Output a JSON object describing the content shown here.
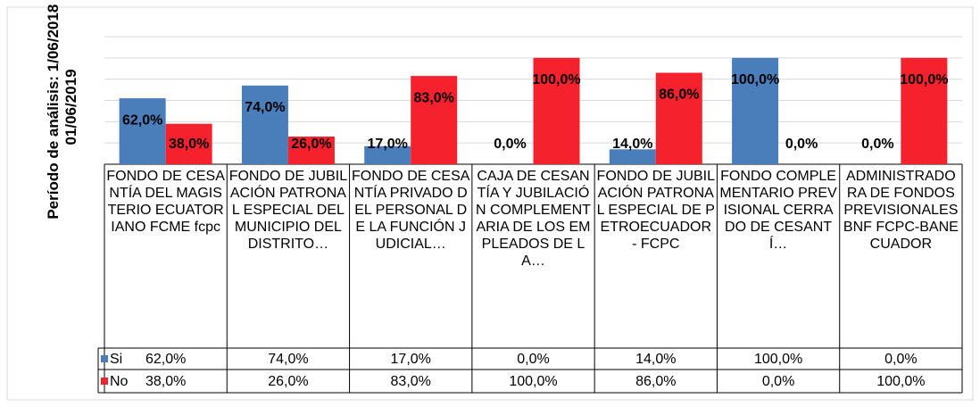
{
  "chart_data": {
    "type": "bar",
    "y_axis_label": "Período de análisis: 1/06/2018 - 01/06/2019",
    "categories": [
      "FONDO DE CESANTÍA DEL MAGISTERIO ECUATORIANO FCME fcpc",
      "FONDO DE JUBILACIÓN PATRONAL ESPECIAL DEL MUNICIPIO DEL DISTRITO…",
      "FONDO DE CESANTÍA PRIVADO DEL PERSONAL DE LA FUNCIÓN JUDICIAL…",
      "CAJA DE CESANTÍA Y JUBILACIÓN COMPLEMENTARIA DE LOS EMPLEADOS DE LA…",
      "FONDO DE JUBILACIÓN PATRONAL ESPECIAL DE PETROECUADOR - FCPC",
      "FONDO COMPLEMENTARIO PREVISIONAL CERRADO DE CESANTÍ…",
      "ADMINISTRADORA DE FONDOS PREVISIONALES BNF FCPC-BANECUADOR"
    ],
    "series": [
      {
        "name": "Si",
        "color": "#4a7ebb",
        "values": [
          62,
          74,
          17,
          0,
          14,
          100,
          0
        ],
        "value_labels": [
          "62,0%",
          "74,0%",
          "17,0%",
          "0,0%",
          "14,0%",
          "100,0%",
          "0,0%"
        ]
      },
      {
        "name": "No",
        "color": "#f5222d",
        "values": [
          38,
          26,
          83,
          100,
          86,
          0,
          100
        ],
        "value_labels": [
          "38,0%",
          "26,0%",
          "83,0%",
          "100,0%",
          "86,0%",
          "0,0%",
          "100,0%"
        ]
      }
    ],
    "ylim": [
      0,
      120
    ],
    "yticks": [
      0,
      20,
      40,
      60,
      80,
      100,
      120
    ],
    "grid": true
  }
}
